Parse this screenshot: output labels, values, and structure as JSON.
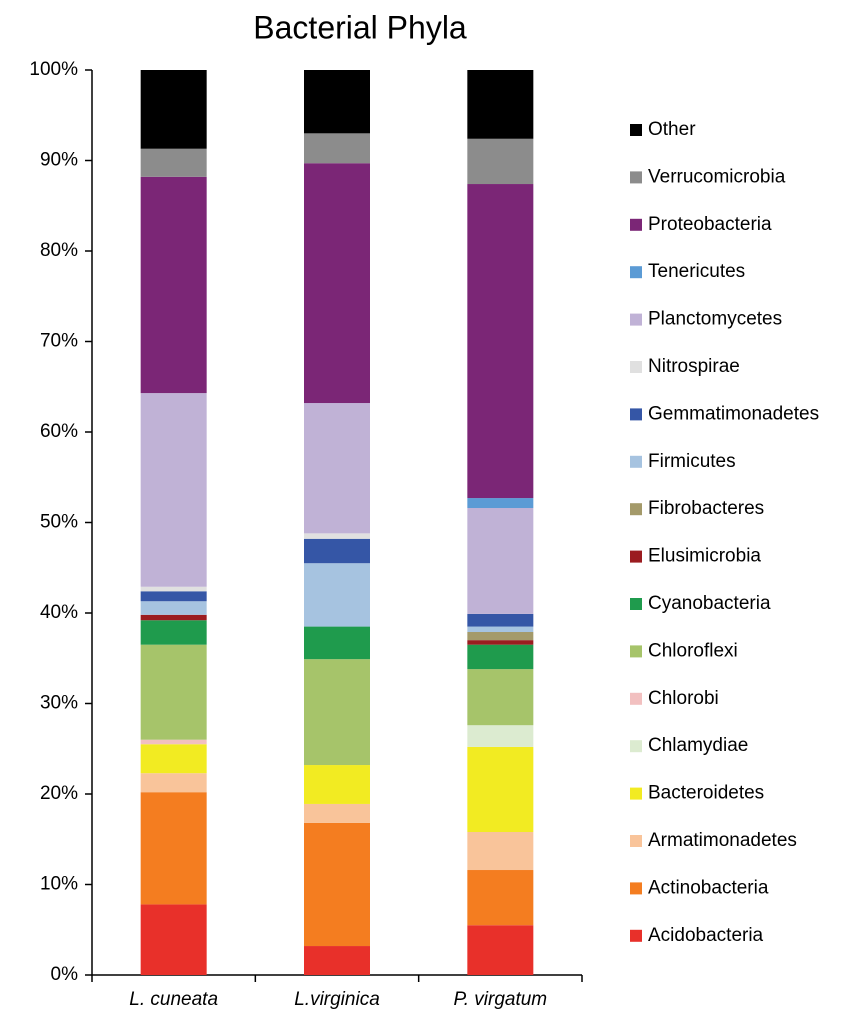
{
  "chart_data": {
    "type": "stacked_bar",
    "title": "Bacterial Phyla",
    "categories": [
      "L. cuneata",
      "L.virginica",
      "P. virgatum"
    ],
    "ylim": [
      0,
      100
    ],
    "yticks": [
      {
        "value": 0,
        "label": "0%"
      },
      {
        "value": 10,
        "label": "10%"
      },
      {
        "value": 20,
        "label": "20%"
      },
      {
        "value": 30,
        "label": "30%"
      },
      {
        "value": 40,
        "label": "40%"
      },
      {
        "value": 50,
        "label": "50%"
      },
      {
        "value": 60,
        "label": "60%"
      },
      {
        "value": 70,
        "label": "70%"
      },
      {
        "value": 80,
        "label": "80%"
      },
      {
        "value": 90,
        "label": "90%"
      },
      {
        "value": 100,
        "label": "100%"
      }
    ],
    "series": [
      {
        "name": "Acidobacteria",
        "color": "#e8302a",
        "values": [
          7.8,
          3.2,
          5.5
        ]
      },
      {
        "name": "Actinobacteria",
        "color": "#f47d20",
        "values": [
          12.4,
          13.6,
          6.1
        ]
      },
      {
        "name": "Armatimonadetes",
        "color": "#f9c49a",
        "values": [
          2.1,
          2.1,
          4.2
        ]
      },
      {
        "name": "Bacteroidetes",
        "color": "#f2eb22",
        "values": [
          3.2,
          4.3,
          9.4
        ]
      },
      {
        "name": "Chlamydiae",
        "color": "#dcebd0",
        "values": [
          0,
          0,
          2.4
        ]
      },
      {
        "name": "Chlorobi",
        "color": "#f2c0c0",
        "values": [
          0.5,
          0,
          0
        ]
      },
      {
        "name": "Chloroflexi",
        "color": "#a6c46a",
        "values": [
          10.5,
          11.7,
          6.2
        ]
      },
      {
        "name": "Cyanobacteria",
        "color": "#1f9b4d",
        "values": [
          2.7,
          3.6,
          2.7
        ]
      },
      {
        "name": "Elusimicrobia",
        "color": "#9b1c20",
        "values": [
          0.6,
          0,
          0.5
        ]
      },
      {
        "name": "Fibrobacteres",
        "color": "#a49a6a",
        "values": [
          0,
          0,
          0.9
        ]
      },
      {
        "name": "Firmicutes",
        "color": "#a6c3e0",
        "values": [
          1.5,
          7.0,
          0.6
        ]
      },
      {
        "name": "Gemmatimonadetes",
        "color": "#3556a6",
        "values": [
          1.1,
          2.7,
          1.4
        ]
      },
      {
        "name": "Nitrospirae",
        "color": "#e0e0e0",
        "values": [
          0.5,
          0.6,
          0
        ]
      },
      {
        "name": "Planctomycetes",
        "color": "#c0b2d6",
        "values": [
          21.4,
          14.4,
          11.7
        ]
      },
      {
        "name": "Tenericutes",
        "color": "#5b9bd5",
        "values": [
          0,
          0,
          1.1
        ]
      },
      {
        "name": "Proteobacteria",
        "color": "#7b2676",
        "values": [
          23.9,
          26.5,
          34.7
        ]
      },
      {
        "name": "Verrucomicrobia",
        "color": "#8c8c8c",
        "values": [
          3.1,
          3.3,
          5.0
        ]
      },
      {
        "name": "Other",
        "color": "#000000",
        "values": [
          8.7,
          7.0,
          7.6
        ]
      }
    ]
  }
}
